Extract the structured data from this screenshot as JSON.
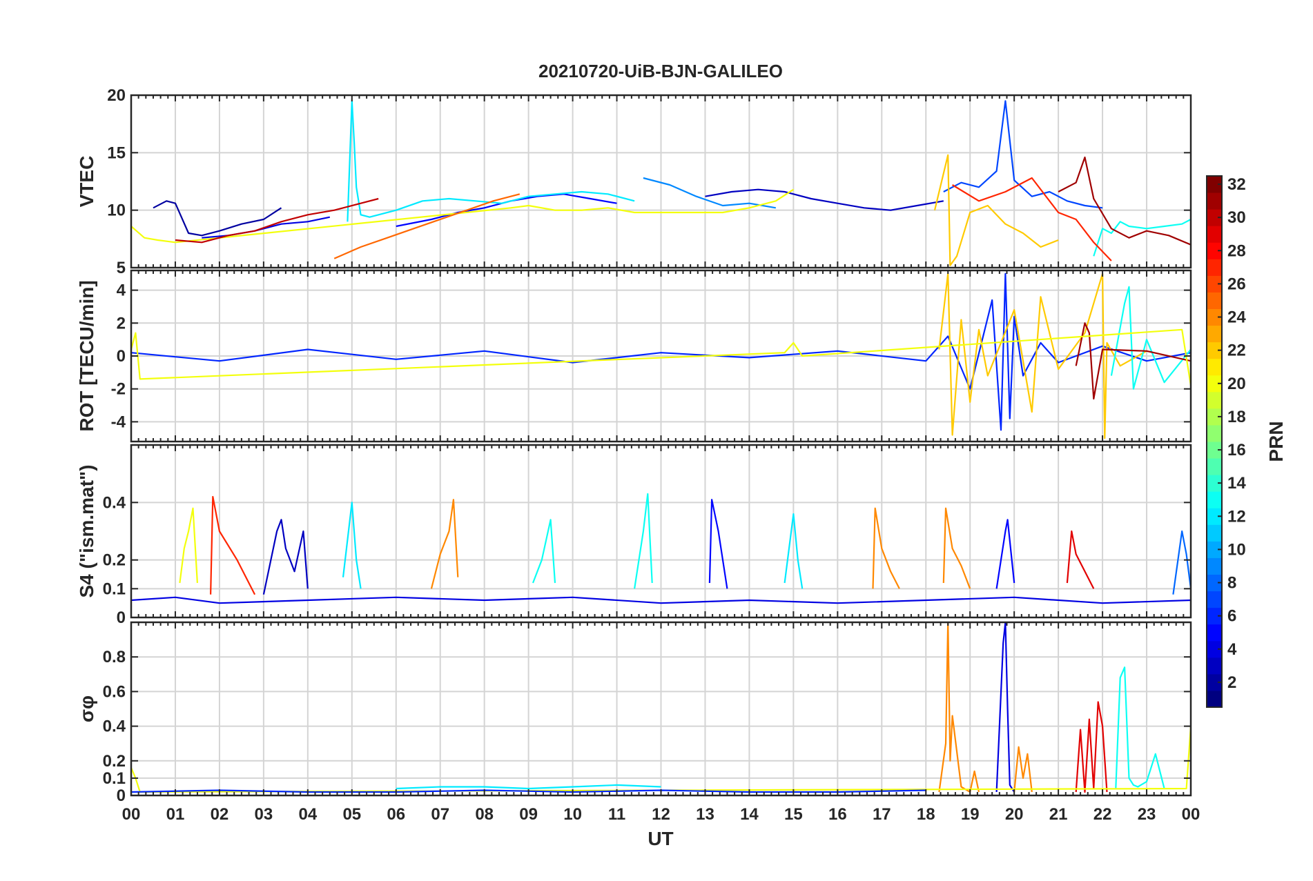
{
  "chart_data": [
    {
      "type": "line",
      "title": "20210720-UiB-BJN-GALILEO",
      "ylabel": "VTEC",
      "ylim": [
        5,
        20
      ],
      "yticks": [
        5,
        10,
        15,
        20
      ],
      "ytick_labels": [
        "5",
        "10",
        "15",
        "20"
      ],
      "grid": true,
      "series": [
        {
          "prn": 2,
          "x": [
            0.5,
            0.8,
            1.0,
            1.3,
            1.6,
            2.0,
            2.5,
            3.0,
            3.4
          ],
          "y": [
            10.2,
            10.8,
            10.6,
            8.0,
            7.8,
            8.2,
            8.8,
            9.2,
            10.2
          ]
        },
        {
          "prn": 4,
          "x": [
            1.6,
            2.2,
            2.8,
            3.4,
            4.0,
            4.5
          ],
          "y": [
            7.6,
            7.8,
            8.2,
            8.8,
            9.0,
            9.4
          ]
        },
        {
          "prn": 5,
          "x": [
            6.0,
            6.8,
            7.4,
            8.0,
            8.6,
            9.2,
            9.8,
            10.4,
            11.0
          ],
          "y": [
            8.6,
            9.2,
            9.8,
            10.2,
            10.8,
            11.2,
            11.4,
            11.0,
            10.6
          ]
        },
        {
          "prn": 3,
          "x": [
            13.0,
            13.6,
            14.2,
            14.8,
            15.4,
            16.0,
            16.6,
            17.2,
            17.8,
            18.4
          ],
          "y": [
            11.2,
            11.6,
            11.8,
            11.6,
            11.0,
            10.6,
            10.2,
            10.0,
            10.4,
            10.8
          ]
        },
        {
          "prn": 7,
          "x": [
            18.4,
            18.8,
            19.2,
            19.6,
            19.8,
            20.0,
            20.4,
            20.8,
            21.2,
            21.6,
            22.0
          ],
          "y": [
            11.6,
            12.4,
            12.0,
            13.4,
            19.5,
            12.6,
            11.2,
            11.6,
            10.8,
            10.4,
            10.2
          ]
        },
        {
          "prn": 9,
          "x": [
            11.6,
            12.2,
            12.8,
            13.4,
            14.0,
            14.6
          ],
          "y": [
            12.8,
            12.2,
            11.2,
            10.4,
            10.6,
            10.2
          ]
        },
        {
          "prn": 12,
          "x": [
            4.9,
            5.0,
            5.05,
            5.1,
            5.2,
            5.4,
            6.0,
            6.6,
            7.2,
            7.8,
            8.4,
            9.0,
            9.6,
            10.2,
            10.8,
            11.4
          ],
          "y": [
            9.0,
            19.5,
            16.0,
            12.0,
            9.6,
            9.4,
            10.0,
            10.8,
            11.0,
            10.8,
            10.6,
            11.2,
            11.4,
            11.6,
            11.4,
            10.8
          ]
        },
        {
          "prn": 13,
          "x": [
            21.8,
            22.0,
            22.2,
            22.4,
            22.6,
            23.0,
            23.4,
            23.8,
            24.0
          ],
          "y": [
            6.0,
            8.4,
            8.0,
            9.0,
            8.6,
            8.4,
            8.6,
            8.8,
            9.2
          ]
        },
        {
          "prn": 20,
          "x": [
            0.0,
            0.3,
            0.6,
            1.0,
            8.6,
            9.0,
            9.6,
            10.2,
            10.8,
            11.4,
            13.4,
            14.0,
            14.6,
            15.0
          ],
          "y": [
            8.6,
            7.6,
            7.4,
            7.2,
            10.2,
            10.4,
            10.0,
            10.0,
            10.2,
            9.8,
            9.8,
            10.2,
            10.8,
            11.8
          ]
        },
        {
          "prn": 22,
          "x": [
            18.2,
            18.5,
            18.55,
            18.7,
            19.0,
            19.4,
            19.8,
            20.2,
            20.6,
            21.0
          ],
          "y": [
            10.0,
            14.8,
            5.2,
            6.0,
            9.8,
            10.4,
            8.8,
            8.0,
            6.8,
            7.4
          ]
        },
        {
          "prn": 25,
          "x": [
            4.6,
            5.2,
            5.8,
            6.4,
            7.0,
            7.6,
            8.2,
            8.8
          ],
          "y": [
            5.8,
            6.8,
            7.6,
            8.4,
            9.2,
            10.0,
            10.8,
            11.4
          ]
        },
        {
          "prn": 27,
          "x": [
            18.6,
            19.2,
            19.8,
            20.4,
            21.0,
            21.4,
            21.8,
            22.2
          ],
          "y": [
            12.2,
            10.8,
            11.6,
            12.8,
            9.8,
            9.2,
            7.2,
            5.6
          ]
        },
        {
          "prn": 30,
          "x": [
            1.0,
            1.6,
            2.2,
            2.8,
            3.4,
            4.0,
            4.6,
            5.2,
            5.6
          ],
          "y": [
            7.4,
            7.2,
            7.8,
            8.2,
            9.0,
            9.6,
            10.0,
            10.6,
            11.0
          ]
        },
        {
          "prn": 31,
          "x": [
            21.0,
            21.4,
            21.6,
            21.8,
            22.2,
            22.6,
            23.0,
            23.5,
            24.0
          ],
          "y": [
            11.6,
            12.4,
            14.6,
            11.0,
            8.4,
            7.6,
            8.2,
            7.8,
            7.0
          ]
        }
      ]
    },
    {
      "type": "line",
      "ylabel": "ROT [TECU/min]",
      "ylim": [
        -5.2,
        5.2
      ],
      "yticks": [
        -4,
        -2,
        0,
        2,
        4
      ],
      "ytick_labels": [
        "-4",
        "-2",
        "0",
        "2",
        "4"
      ],
      "grid": true,
      "series": [
        {
          "prn": 6,
          "x": [
            0.0,
            2.0,
            4.0,
            6.0,
            8.0,
            10.0,
            12.0,
            14.0,
            16.0,
            18.0,
            18.5,
            19.0,
            19.5,
            19.7,
            19.8,
            19.9,
            20.0,
            20.2,
            20.6,
            21.0,
            22.0,
            23.0,
            24.0
          ],
          "y": [
            0.2,
            -0.3,
            0.4,
            -0.2,
            0.3,
            -0.4,
            0.2,
            -0.1,
            0.3,
            -0.3,
            1.2,
            -2.0,
            3.4,
            -4.5,
            5.0,
            -3.8,
            2.4,
            -1.2,
            0.8,
            -0.4,
            0.6,
            -0.3,
            0.2
          ]
        },
        {
          "prn": 22,
          "x": [
            18.3,
            18.5,
            18.6,
            18.8,
            19.0,
            19.2,
            19.4,
            20.0,
            20.4,
            20.6,
            21.0,
            21.6,
            22.0,
            22.05,
            22.1,
            22.4,
            23.0
          ],
          "y": [
            0.4,
            5.0,
            -4.8,
            2.2,
            -2.8,
            1.6,
            -1.2,
            2.8,
            -3.4,
            3.6,
            -0.8,
            1.4,
            5.0,
            -5.0,
            0.8,
            -0.6,
            0.3
          ]
        },
        {
          "prn": 13,
          "x": [
            22.2,
            22.5,
            22.6,
            22.7,
            23.0,
            23.4,
            24.0
          ],
          "y": [
            -1.2,
            3.2,
            4.2,
            -2.0,
            1.0,
            -1.6,
            0.4
          ]
        },
        {
          "prn": 31,
          "x": [
            21.4,
            21.6,
            21.7,
            21.8,
            22.0,
            23.0,
            24.0
          ],
          "y": [
            -0.6,
            2.0,
            1.4,
            -2.6,
            0.4,
            0.3,
            -0.3
          ]
        },
        {
          "prn": 20,
          "x": [
            0.0,
            0.1,
            0.2,
            14.8,
            15.0,
            15.2,
            23.8,
            24.0
          ],
          "y": [
            0.4,
            1.4,
            -1.4,
            0.2,
            0.8,
            0.0,
            1.6,
            -1.8
          ]
        }
      ]
    },
    {
      "type": "line",
      "ylabel": "S4 (\"ism.mat\")",
      "ylim": [
        0,
        0.6
      ],
      "yticks": [
        0,
        0.1,
        0.2,
        0.4
      ],
      "ytick_labels": [
        "0",
        "0.1",
        "0.2",
        "0.4"
      ],
      "grid": true,
      "series": [
        {
          "prn": 27,
          "x": [
            1.8,
            1.85,
            2.0,
            2.2,
            2.4,
            2.6,
            2.8
          ],
          "y": [
            0.08,
            0.42,
            0.3,
            0.25,
            0.2,
            0.14,
            0.08
          ]
        },
        {
          "prn": 20,
          "x": [
            1.1,
            1.2,
            1.3,
            1.4,
            1.5
          ],
          "y": [
            0.12,
            0.24,
            0.3,
            0.38,
            0.12
          ]
        },
        {
          "prn": 3,
          "x": [
            3.0,
            3.3,
            3.4,
            3.5,
            3.7,
            3.9,
            4.0
          ],
          "y": [
            0.08,
            0.3,
            0.34,
            0.24,
            0.16,
            0.3,
            0.1
          ]
        },
        {
          "prn": 12,
          "x": [
            4.8,
            5.0,
            5.1,
            5.2
          ],
          "y": [
            0.14,
            0.4,
            0.2,
            0.1
          ]
        },
        {
          "prn": 24,
          "x": [
            6.8,
            7.0,
            7.2,
            7.3,
            7.4
          ],
          "y": [
            0.1,
            0.22,
            0.3,
            0.41,
            0.14
          ]
        },
        {
          "prn": 13,
          "x": [
            9.1,
            9.3,
            9.5,
            9.6
          ],
          "y": [
            0.12,
            0.2,
            0.34,
            0.12
          ]
        },
        {
          "prn": 13,
          "x": [
            11.4,
            11.6,
            11.7,
            11.8
          ],
          "y": [
            0.1,
            0.3,
            0.43,
            0.12
          ]
        },
        {
          "prn": 5,
          "x": [
            13.1,
            13.15,
            13.3,
            13.5
          ],
          "y": [
            0.12,
            0.41,
            0.3,
            0.1
          ]
        },
        {
          "prn": 12,
          "x": [
            14.8,
            15.0,
            15.1,
            15.2
          ],
          "y": [
            0.12,
            0.36,
            0.2,
            0.1
          ]
        },
        {
          "prn": 24,
          "x": [
            16.8,
            16.85,
            17.0,
            17.2,
            17.4
          ],
          "y": [
            0.1,
            0.38,
            0.24,
            0.16,
            0.1
          ]
        },
        {
          "prn": 24,
          "x": [
            18.4,
            18.45,
            18.6,
            18.8,
            19.0
          ],
          "y": [
            0.12,
            0.38,
            0.24,
            0.18,
            0.1
          ]
        },
        {
          "prn": 5,
          "x": [
            19.6,
            19.8,
            19.85,
            20.0
          ],
          "y": [
            0.1,
            0.3,
            0.34,
            0.12
          ]
        },
        {
          "prn": 29,
          "x": [
            21.2,
            21.3,
            21.4,
            21.6,
            21.8
          ],
          "y": [
            0.12,
            0.3,
            0.22,
            0.16,
            0.1
          ]
        },
        {
          "prn": 8,
          "x": [
            23.6,
            23.8,
            23.9,
            24.0
          ],
          "y": [
            0.08,
            0.3,
            0.22,
            0.1
          ]
        },
        {
          "prn": 4,
          "x": [
            0.0,
            1.0,
            2.0,
            4.0,
            6.0,
            8.0,
            10.0,
            12.0,
            14.0,
            16.0,
            18.0,
            20.0,
            22.0,
            24.0
          ],
          "y": [
            0.06,
            0.07,
            0.05,
            0.06,
            0.07,
            0.06,
            0.07,
            0.05,
            0.06,
            0.05,
            0.06,
            0.07,
            0.05,
            0.06
          ]
        }
      ]
    },
    {
      "type": "line",
      "xlabel": "UT",
      "ylabel": "σφ",
      "ylim": [
        0,
        1.0
      ],
      "yticks": [
        0,
        0.1,
        0.2,
        0.4,
        0.6,
        0.8
      ],
      "ytick_labels": [
        "0",
        "0.1",
        "0.2",
        "0.4",
        "0.6",
        "0.8"
      ],
      "grid": true,
      "series": [
        {
          "prn": 24,
          "x": [
            18.3,
            18.45,
            18.5,
            18.55,
            18.6,
            18.8,
            19.0,
            19.1,
            19.2
          ],
          "y": [
            0.02,
            0.3,
            1.0,
            0.2,
            0.46,
            0.05,
            0.02,
            0.14,
            0.02
          ]
        },
        {
          "prn": 4,
          "x": [
            19.6,
            19.75,
            19.8,
            19.85,
            19.9,
            20.0
          ],
          "y": [
            0.02,
            0.88,
            1.0,
            0.5,
            0.06,
            0.02
          ]
        },
        {
          "prn": 24,
          "x": [
            20.0,
            20.1,
            20.2,
            20.3,
            20.4
          ],
          "y": [
            0.02,
            0.28,
            0.1,
            0.24,
            0.02
          ]
        },
        {
          "prn": 29,
          "x": [
            21.4,
            21.5,
            21.6,
            21.7,
            21.8,
            21.9,
            22.0,
            22.1
          ],
          "y": [
            0.02,
            0.38,
            0.02,
            0.44,
            0.04,
            0.54,
            0.4,
            0.02
          ]
        },
        {
          "prn": 13,
          "x": [
            22.3,
            22.4,
            22.5,
            22.6,
            22.7,
            22.8,
            23.0,
            23.2,
            23.4
          ],
          "y": [
            0.04,
            0.68,
            0.74,
            0.1,
            0.06,
            0.05,
            0.08,
            0.24,
            0.04
          ]
        },
        {
          "prn": 20,
          "x": [
            0.0,
            0.1,
            0.2,
            23.9,
            24.0
          ],
          "y": [
            0.16,
            0.1,
            0.02,
            0.04,
            0.4
          ]
        },
        {
          "prn": 6,
          "x": [
            0.0,
            2.0,
            4.0,
            6.0,
            8.0,
            10.0,
            12.0,
            14.0,
            16.0,
            18.0
          ],
          "y": [
            0.02,
            0.03,
            0.02,
            0.02,
            0.03,
            0.02,
            0.03,
            0.02,
            0.02,
            0.03
          ]
        },
        {
          "prn": 12,
          "x": [
            6.0,
            7.0,
            8.0,
            9.0,
            10.0,
            11.0,
            12.0
          ],
          "y": [
            0.04,
            0.05,
            0.05,
            0.04,
            0.05,
            0.06,
            0.05
          ]
        }
      ]
    }
  ],
  "x_axis": {
    "xlim": [
      0,
      24
    ],
    "xtick_labels": [
      "00",
      "01",
      "02",
      "03",
      "04",
      "05",
      "06",
      "07",
      "08",
      "09",
      "10",
      "11",
      "12",
      "13",
      "14",
      "15",
      "16",
      "17",
      "18",
      "19",
      "20",
      "21",
      "22",
      "23",
      "00"
    ],
    "xlabel": "UT"
  },
  "colorbar": {
    "label": "PRN",
    "colormap": "jet",
    "range": [
      1,
      32
    ],
    "ticks": [
      2,
      4,
      6,
      8,
      10,
      12,
      14,
      16,
      18,
      20,
      22,
      24,
      26,
      28,
      30,
      32
    ],
    "tick_labels": [
      "2",
      "4",
      "6",
      "8",
      "10",
      "12",
      "14",
      "16",
      "18",
      "20",
      "22",
      "24",
      "26",
      "28",
      "30",
      "32"
    ]
  }
}
